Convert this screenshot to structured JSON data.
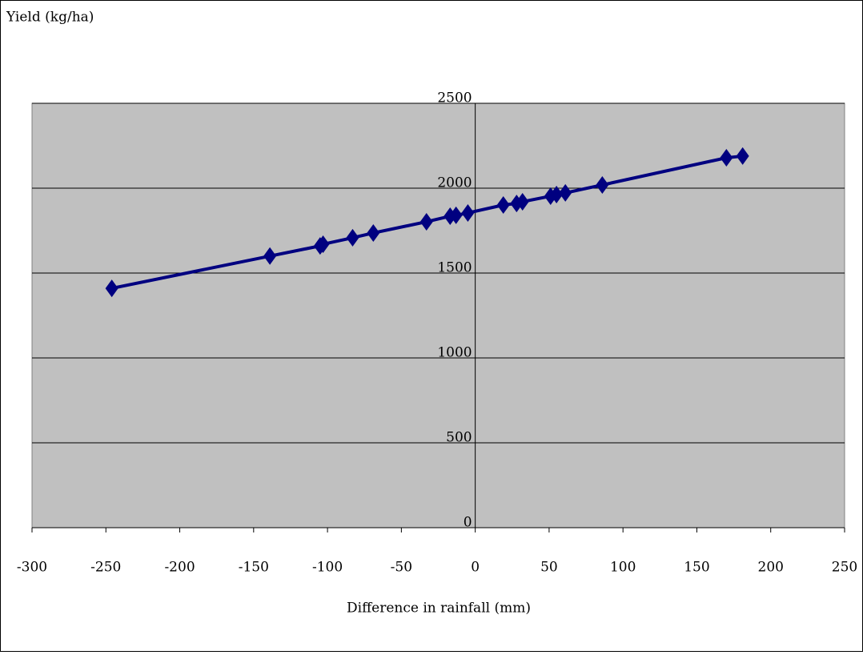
{
  "chart_data": {
    "type": "line",
    "y_axis_label": "Yield (kg/ha)",
    "x_axis_label": "Difference in rainfall (mm)",
    "xlim": [
      -300,
      250
    ],
    "xticks": [
      -300,
      -250,
      -200,
      -150,
      -100,
      -50,
      0,
      50,
      100,
      150,
      200,
      250
    ],
    "ylim": [
      0,
      2500
    ],
    "yticks": [
      0,
      500,
      1000,
      1500,
      2000,
      2500
    ],
    "grid": true,
    "marker": "diamond",
    "series": [
      {
        "color": "#000080",
        "x": [
          -246,
          -139,
          -105,
          -103,
          -83,
          -69,
          -33,
          -17,
          -13,
          -5,
          19,
          28,
          32,
          51,
          55,
          61,
          86,
          170,
          181
        ],
        "values": [
          1410,
          1600,
          1660,
          1670,
          1708,
          1736,
          1802,
          1835,
          1840,
          1854,
          1901,
          1910,
          1920,
          1953,
          1962,
          1972,
          2019,
          2179,
          2189
        ]
      }
    ]
  }
}
